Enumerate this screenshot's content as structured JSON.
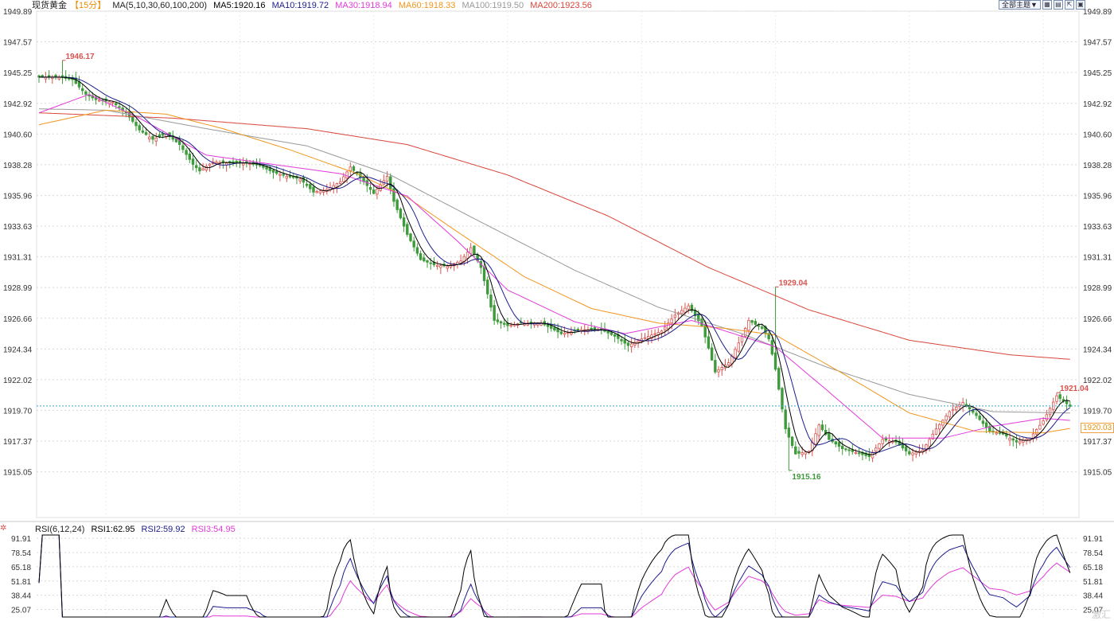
{
  "header": {
    "symbol": "现货黄金",
    "period": "【15分】",
    "ma_params": "MA(5,10,30,60,100,200)",
    "ma5": "MA5:1920.16",
    "ma10": "MA10:1919.72",
    "ma30": "MA30:1918.94",
    "ma60": "MA60:1918.33",
    "ma100": "MA100:1919.50",
    "ma200": "MA200:1923.56"
  },
  "rsi_header": {
    "label": "RSI(6,12,24)",
    "rsi1": "RSI1:62.95",
    "rsi2": "RSI2:59.92",
    "rsi3": "RSI3:54.95"
  },
  "toolbar": {
    "theme_label": "全部主题▼",
    "icons": [
      "grid-icon",
      "layout-icon",
      "expand-icon",
      "maximize-icon"
    ]
  },
  "last_price_label": "1920.03",
  "watermark": "激汇",
  "colors": {
    "up": "#d9534f",
    "down": "#3f9a3c",
    "ma5": "#000000",
    "ma10": "#1c1c8c",
    "ma30": "#e23ad9",
    "ma60": "#f0961e",
    "ma100": "#999999",
    "ma200": "#d9453a",
    "rsi1": "#000000",
    "rsi2": "#1c1c8c",
    "rsi3": "#e23ad9",
    "grid": "#d8d8d8",
    "lastline": "#3ea6c8"
  },
  "chart_data": [
    {
      "type": "candlestick",
      "title": "现货黄金 15分",
      "ylim": [
        1912.8,
        1949.89
      ],
      "y_ticks": [
        "1949.89",
        "1947.57",
        "1945.25",
        "1942.92",
        "1940.60",
        "1938.28",
        "1935.96",
        "1933.63",
        "1931.31",
        "1928.99",
        "1926.66",
        "1924.34",
        "1922.02",
        "1919.70",
        "1917.37",
        "1915.05"
      ],
      "grid": true,
      "annotations": [
        {
          "text": "1946.17",
          "bar": 7,
          "price": 1946.17,
          "color": "up"
        },
        {
          "text": "1929.04",
          "bar": 220,
          "price": 1929.04,
          "color": "up"
        },
        {
          "text": "1915.16",
          "bar": 224,
          "price": 1915.16,
          "color": "down"
        },
        {
          "text": "1921.04",
          "bar": 304,
          "price": 1921.04,
          "color": "up"
        }
      ],
      "last_price": 1920.03,
      "close_anchors": [
        [
          0,
          1944.9
        ],
        [
          6,
          1944.9
        ],
        [
          10,
          1944.7
        ],
        [
          14,
          1943.6
        ],
        [
          17,
          1943.2
        ],
        [
          22,
          1943.0
        ],
        [
          26,
          1942.2
        ],
        [
          30,
          1940.9
        ],
        [
          34,
          1940.2
        ],
        [
          38,
          1940.6
        ],
        [
          42,
          1939.8
        ],
        [
          46,
          1938.3
        ],
        [
          48,
          1937.8
        ],
        [
          52,
          1938.5
        ],
        [
          56,
          1938.4
        ],
        [
          62,
          1938.4
        ],
        [
          66,
          1938.2
        ],
        [
          70,
          1937.7
        ],
        [
          74,
          1937.4
        ],
        [
          78,
          1937.2
        ],
        [
          82,
          1936.2
        ],
        [
          86,
          1936.4
        ],
        [
          90,
          1937.0
        ],
        [
          93,
          1938.1
        ],
        [
          96,
          1937.3
        ],
        [
          100,
          1936.1
        ],
        [
          104,
          1937.4
        ],
        [
          106,
          1935.5
        ],
        [
          110,
          1933.0
        ],
        [
          114,
          1931.1
        ],
        [
          118,
          1930.7
        ],
        [
          122,
          1930.6
        ],
        [
          126,
          1931.0
        ],
        [
          129,
          1932.0
        ],
        [
          132,
          1930.5
        ],
        [
          136,
          1926.5
        ],
        [
          140,
          1926.1
        ],
        [
          144,
          1926.3
        ],
        [
          150,
          1926.3
        ],
        [
          156,
          1925.5
        ],
        [
          162,
          1925.8
        ],
        [
          168,
          1925.8
        ],
        [
          172,
          1925.3
        ],
        [
          176,
          1924.6
        ],
        [
          180,
          1925.1
        ],
        [
          186,
          1925.7
        ],
        [
          190,
          1926.9
        ],
        [
          194,
          1927.6
        ],
        [
          198,
          1926.1
        ],
        [
          200,
          1924.4
        ],
        [
          202,
          1922.6
        ],
        [
          206,
          1923.3
        ],
        [
          210,
          1925.3
        ],
        [
          212,
          1926.5
        ],
        [
          216,
          1925.9
        ],
        [
          218,
          1925.1
        ],
        [
          220,
          1922.8
        ],
        [
          223,
          1918.3
        ],
        [
          226,
          1916.4
        ],
        [
          230,
          1916.6
        ],
        [
          233,
          1918.6
        ],
        [
          236,
          1917.5
        ],
        [
          240,
          1916.8
        ],
        [
          244,
          1916.5
        ],
        [
          248,
          1916.2
        ],
        [
          252,
          1917.5
        ],
        [
          256,
          1917.3
        ],
        [
          260,
          1916.4
        ],
        [
          264,
          1916.7
        ],
        [
          268,
          1918.3
        ],
        [
          272,
          1919.6
        ],
        [
          276,
          1920.3
        ],
        [
          280,
          1919.3
        ],
        [
          284,
          1918.1
        ],
        [
          288,
          1917.9
        ],
        [
          292,
          1917.3
        ],
        [
          296,
          1917.6
        ],
        [
          300,
          1918.9
        ],
        [
          304,
          1920.8
        ],
        [
          308,
          1920.0
        ]
      ],
      "ma_anchors": {
        "ma30": [
          [
            0,
            1942.2
          ],
          [
            15,
            1943.6
          ],
          [
            30,
            1941.8
          ],
          [
            50,
            1939.0
          ],
          [
            70,
            1938.3
          ],
          [
            90,
            1937.6
          ],
          [
            110,
            1935.9
          ],
          [
            125,
            1932.5
          ],
          [
            140,
            1928.8
          ],
          [
            160,
            1926.4
          ],
          [
            175,
            1925.5
          ],
          [
            195,
            1926.5
          ],
          [
            210,
            1925.3
          ],
          [
            220,
            1924.5
          ],
          [
            235,
            1921.3
          ],
          [
            252,
            1917.6
          ],
          [
            270,
            1917.6
          ],
          [
            285,
            1918.5
          ],
          [
            300,
            1919.1
          ],
          [
            308,
            1918.94
          ]
        ],
        "ma60": [
          [
            0,
            1941.3
          ],
          [
            20,
            1942.4
          ],
          [
            38,
            1942.1
          ],
          [
            55,
            1941.0
          ],
          [
            75,
            1939.4
          ],
          [
            95,
            1937.6
          ],
          [
            110,
            1935.8
          ],
          [
            125,
            1933.2
          ],
          [
            145,
            1929.8
          ],
          [
            165,
            1927.4
          ],
          [
            185,
            1926.3
          ],
          [
            205,
            1925.9
          ],
          [
            220,
            1925.4
          ],
          [
            240,
            1922.5
          ],
          [
            260,
            1919.5
          ],
          [
            280,
            1918.1
          ],
          [
            300,
            1918.0
          ],
          [
            308,
            1918.33
          ]
        ],
        "ma100": [
          [
            0,
            1942.5
          ],
          [
            20,
            1942.4
          ],
          [
            50,
            1941.0
          ],
          [
            80,
            1939.7
          ],
          [
            105,
            1937.5
          ],
          [
            130,
            1934.2
          ],
          [
            160,
            1930.3
          ],
          [
            185,
            1927.5
          ],
          [
            210,
            1925.5
          ],
          [
            235,
            1923.0
          ],
          [
            260,
            1920.9
          ],
          [
            285,
            1919.6
          ],
          [
            308,
            1919.5
          ]
        ],
        "ma200": [
          [
            0,
            1942.2
          ],
          [
            40,
            1941.8
          ],
          [
            80,
            1941.0
          ],
          [
            110,
            1939.8
          ],
          [
            140,
            1937.5
          ],
          [
            170,
            1934.4
          ],
          [
            200,
            1930.5
          ],
          [
            230,
            1927.3
          ],
          [
            260,
            1925.0
          ],
          [
            290,
            1923.9
          ],
          [
            308,
            1923.56
          ]
        ]
      },
      "ma_last": {
        "ma5": 1920.16,
        "ma10": 1919.72,
        "ma30": 1918.94,
        "ma60": 1918.33,
        "ma100": 1919.5,
        "ma200": 1923.56
      }
    },
    {
      "type": "line",
      "title": "RSI(6,12,24)",
      "ylim": [
        18,
        95
      ],
      "y_ticks": [
        "91.91",
        "78.54",
        "65.18",
        "51.81",
        "38.44",
        "25.07"
      ],
      "grid": true,
      "series": [
        {
          "name": "RSI1",
          "last": 62.95
        },
        {
          "name": "RSI2",
          "last": 59.92
        },
        {
          "name": "RSI3",
          "last": 54.95
        }
      ]
    }
  ]
}
